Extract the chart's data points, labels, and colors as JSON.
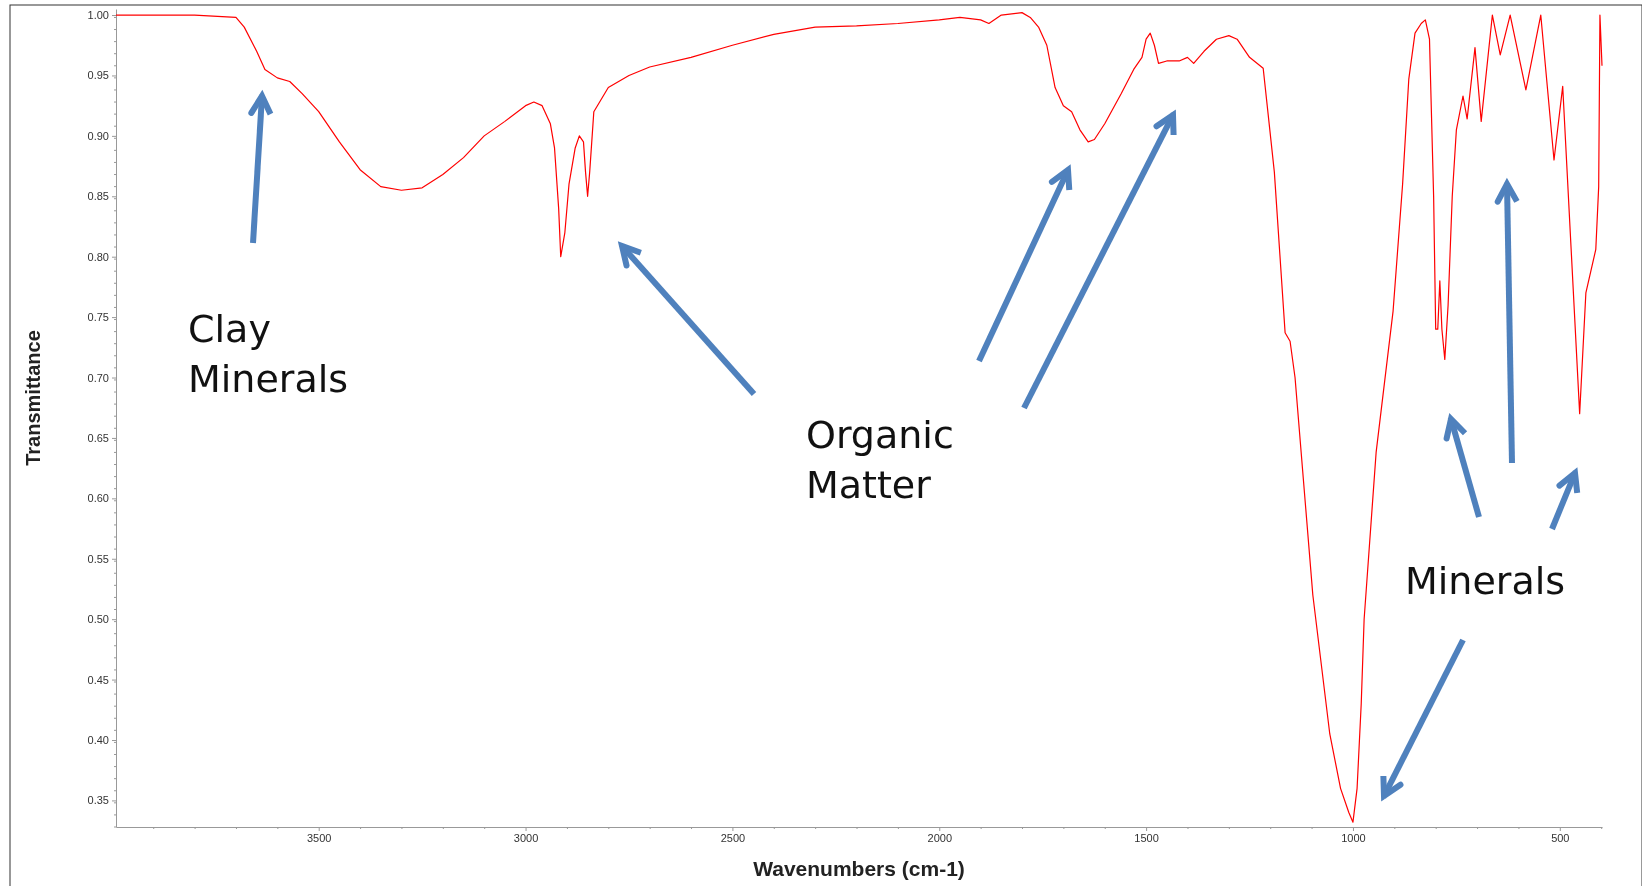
{
  "chart_data": {
    "type": "line",
    "xlabel": "Wavenumbers (cm-1)",
    "ylabel": "Transmittance",
    "xlim": [
      3990,
      398
    ],
    "ylim": [
      0.328,
      1.005
    ],
    "xticks": [
      {
        "value": 3900,
        "label": null
      },
      {
        "value": 3800,
        "label": null
      },
      {
        "value": 3700,
        "label": null
      },
      {
        "value": 3600,
        "label": null
      },
      3500,
      {
        "value": 3400,
        "label": null
      },
      {
        "value": 3300,
        "label": null
      },
      {
        "value": 3200,
        "label": null
      },
      {
        "value": 3100,
        "label": null
      },
      3000,
      {
        "value": 2900,
        "label": null
      },
      {
        "value": 2800,
        "label": null
      },
      {
        "value": 2700,
        "label": null
      },
      {
        "value": 2600,
        "label": null
      },
      2500,
      {
        "value": 2400,
        "label": null
      },
      {
        "value": 2300,
        "label": null
      },
      {
        "value": 2200,
        "label": null
      },
      {
        "value": 2100,
        "label": null
      },
      2000,
      {
        "value": 1900,
        "label": null
      },
      {
        "value": 1800,
        "label": null
      },
      {
        "value": 1700,
        "label": null
      },
      {
        "value": 1600,
        "label": null
      },
      1500,
      {
        "value": 1400,
        "label": null
      },
      {
        "value": 1300,
        "label": null
      },
      {
        "value": 1200,
        "label": null
      },
      {
        "value": 1100,
        "label": null
      },
      1000,
      {
        "value": 900,
        "label": null
      },
      {
        "value": 800,
        "label": null
      },
      {
        "value": 700,
        "label": null
      },
      {
        "value": 600,
        "label": null
      },
      500,
      {
        "value": 400,
        "label": null
      }
    ],
    "yticks": [
      0.35,
      {
        "value": 0.4,
        "label": "0.40"
      },
      0.45,
      {
        "value": 0.5,
        "label": "0.50"
      },
      0.55,
      {
        "value": 0.6,
        "label": "0.60"
      },
      0.65,
      {
        "value": 0.7,
        "label": "0.70"
      },
      0.75,
      {
        "value": 0.8,
        "label": "0.80"
      },
      0.85,
      {
        "value": 0.9,
        "label": "0.90"
      },
      0.95,
      {
        "value": 1,
        "label": "1.00"
      }
    ],
    "grid": false,
    "marker": "none",
    "line_style": "solid",
    "series": [
      {
        "color": "#ff0000",
        "x": [
          3990,
          3800,
          3700,
          3680,
          3650,
          3630,
          3600,
          3570,
          3540,
          3500,
          3450,
          3400,
          3350,
          3300,
          3250,
          3200,
          3150,
          3100,
          3050,
          3000,
          2980,
          2960,
          2940,
          2930,
          2920,
          2915,
          2905,
          2895,
          2880,
          2870,
          2860,
          2855,
          2850,
          2845,
          2835,
          2800,
          2750,
          2700,
          2600,
          2500,
          2400,
          2300,
          2200,
          2100,
          2000,
          1950,
          1900,
          1880,
          1850,
          1800,
          1780,
          1760,
          1740,
          1720,
          1700,
          1680,
          1660,
          1640,
          1625,
          1600,
          1560,
          1530,
          1510,
          1500,
          1490,
          1480,
          1470,
          1450,
          1420,
          1400,
          1385,
          1360,
          1330,
          1300,
          1280,
          1250,
          1217,
          1190,
          1164,
          1152,
          1140,
          1097,
          1056,
          1030,
          1010,
          1000,
          990,
          980,
          973,
          944,
          903,
          880,
          865,
          850,
          835,
          825,
          815,
          805,
          800,
          795,
          790,
          785,
          778,
          770,
          760,
          750,
          734,
          724,
          705,
          690,
          663,
          644,
          620,
          582,
          546,
          514,
          493,
          452,
          437,
          413,
          406,
          403,
          398
        ],
        "values": [
          1.0,
          1.0,
          0.998,
          0.99,
          0.97,
          0.955,
          0.948,
          0.945,
          0.935,
          0.92,
          0.895,
          0.872,
          0.858,
          0.855,
          0.857,
          0.868,
          0.882,
          0.9,
          0.912,
          0.925,
          0.928,
          0.925,
          0.91,
          0.89,
          0.84,
          0.8,
          0.82,
          0.86,
          0.89,
          0.9,
          0.895,
          0.87,
          0.85,
          0.87,
          0.92,
          0.94,
          0.95,
          0.957,
          0.965,
          0.975,
          0.984,
          0.99,
          0.991,
          0.993,
          0.996,
          0.998,
          0.996,
          0.993,
          1.0,
          1.002,
          0.998,
          0.99,
          0.975,
          0.94,
          0.925,
          0.92,
          0.905,
          0.895,
          0.897,
          0.91,
          0.935,
          0.955,
          0.965,
          0.98,
          0.985,
          0.975,
          0.96,
          0.962,
          0.962,
          0.965,
          0.96,
          0.97,
          0.98,
          0.983,
          0.98,
          0.965,
          0.956,
          0.87,
          0.737,
          0.73,
          0.7,
          0.52,
          0.405,
          0.36,
          0.34,
          0.332,
          0.36,
          0.43,
          0.5,
          0.638,
          0.755,
          0.86,
          0.947,
          0.985,
          0.993,
          0.996,
          0.98,
          0.85,
          0.74,
          0.74,
          0.78,
          0.74,
          0.715,
          0.76,
          0.85,
          0.905,
          0.933,
          0.914,
          0.973,
          0.912,
          1.0,
          0.967,
          1.0,
          0.938,
          1.0,
          0.88,
          0.941,
          0.67,
          0.77,
          0.806,
          0.858,
          1.0,
          0.958
        ]
      }
    ],
    "annotations": [
      "Clay\nMinerals",
      "Organic\nMatter",
      "Minerals"
    ]
  }
}
